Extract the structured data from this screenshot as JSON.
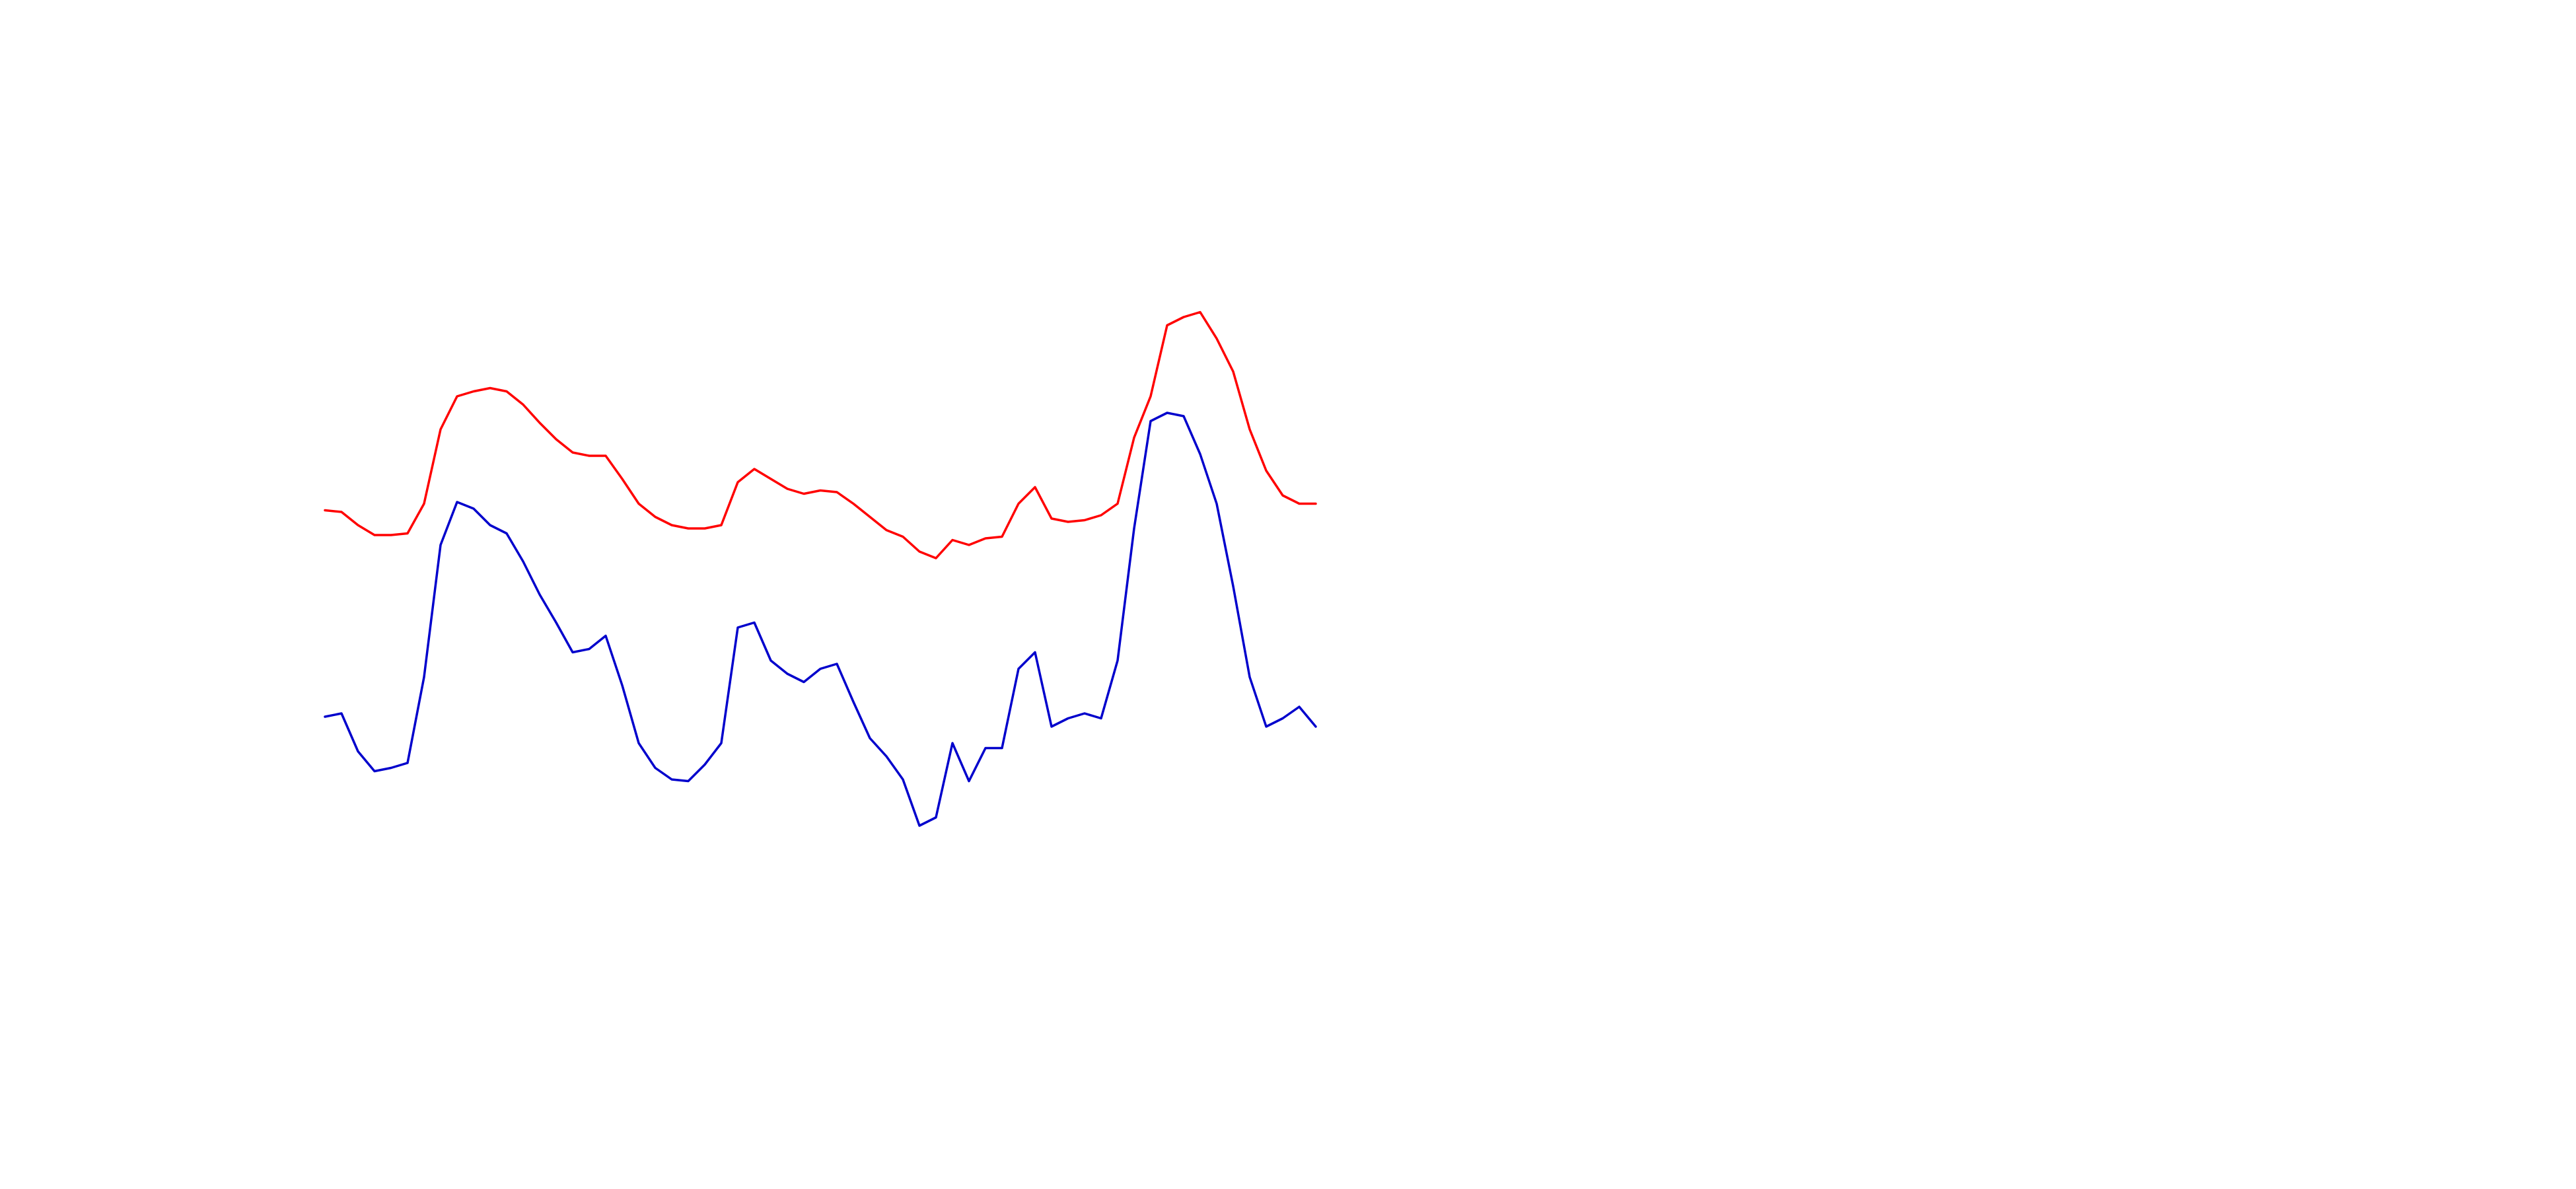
{
  "chart_data": {
    "type": "line",
    "ylim": [
      0,
      350
    ],
    "series": [
      {
        "color": "#ff0000",
        "values": [
          211,
          210,
          202,
          196,
          196,
          197,
          215,
          260,
          280,
          283,
          285,
          283,
          275,
          264,
          254,
          246,
          244,
          244,
          230,
          215,
          207,
          202,
          200,
          200,
          202,
          228,
          236,
          230,
          224,
          221,
          223,
          222,
          215,
          207,
          199,
          195,
          186,
          182,
          193,
          190,
          194,
          195,
          215,
          225,
          206,
          204,
          205,
          208,
          215,
          255,
          280,
          323,
          328,
          331,
          315,
          295,
          260,
          235,
          220,
          215,
          215
        ]
      },
      {
        "color": "#0000cc",
        "values": [
          86,
          88,
          65,
          53,
          55,
          58,
          110,
          190,
          216,
          212,
          202,
          197,
          180,
          160,
          143,
          125,
          127,
          135,
          105,
          70,
          55,
          48,
          47,
          57,
          70,
          140,
          143,
          120,
          112,
          107,
          115,
          118,
          95,
          73,
          62,
          48,
          20,
          25,
          70,
          47,
          67,
          67,
          115,
          125,
          80,
          85,
          88,
          85,
          120,
          200,
          265,
          270,
          268,
          245,
          215,
          165,
          110,
          80,
          85,
          92,
          80
        ]
      }
    ]
  }
}
